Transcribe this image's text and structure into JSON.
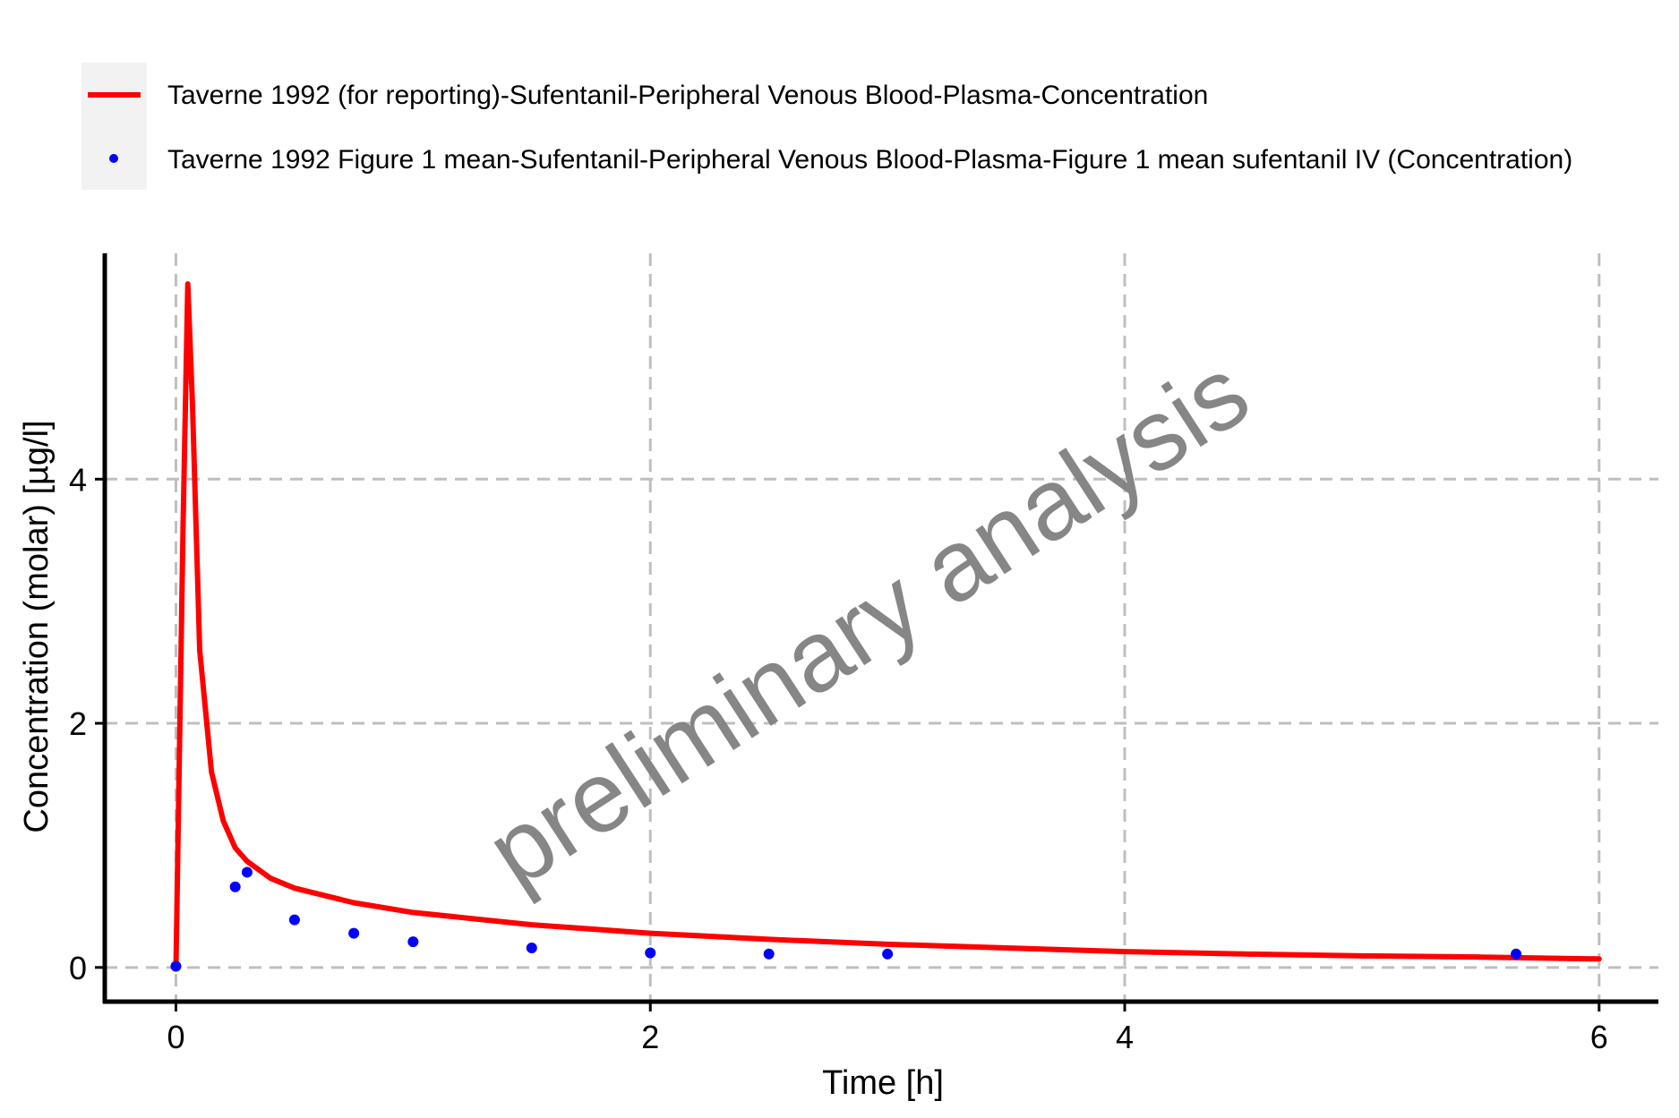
{
  "chart_data": {
    "type": "line",
    "title": "",
    "xlabel": "Time [h]",
    "ylabel": "Concentration (molar) [µg/l]",
    "xlim": [
      -0.3,
      6.25
    ],
    "ylim": [
      -0.28,
      5.85
    ],
    "x_ticks": [
      0,
      2,
      4,
      6
    ],
    "y_ticks": [
      0,
      2,
      4
    ],
    "grid": true,
    "legend_position": "top-left",
    "watermark": "preliminary analysis",
    "series": [
      {
        "name": "Taverne 1992 (for reporting)-Sufentanil-Peripheral Venous Blood-Plasma-Concentration",
        "kind": "line",
        "color": "#ff0000",
        "x": [
          0,
          0.03,
          0.05,
          0.07,
          0.1,
          0.15,
          0.2,
          0.25,
          0.3,
          0.4,
          0.5,
          0.75,
          1.0,
          1.5,
          2.0,
          2.5,
          3.0,
          3.5,
          4.0,
          4.5,
          5.0,
          5.5,
          6.0
        ],
        "y": [
          0,
          3.6,
          5.6,
          4.6,
          2.6,
          1.6,
          1.2,
          0.98,
          0.87,
          0.73,
          0.65,
          0.53,
          0.45,
          0.35,
          0.28,
          0.23,
          0.19,
          0.16,
          0.13,
          0.11,
          0.095,
          0.085,
          0.07
        ]
      },
      {
        "name": "Taverne 1992 Figure 1 mean-Sufentanil-Peripheral Venous Blood-Plasma-Figure 1 mean sufentanil IV (Concentration)",
        "kind": "scatter",
        "color": "#0000ff",
        "x": [
          0,
          0.25,
          0.3,
          0.5,
          0.75,
          1.0,
          1.5,
          2.0,
          2.5,
          3.0,
          5.65
        ],
        "y": [
          0.01,
          0.66,
          0.78,
          0.39,
          0.28,
          0.21,
          0.16,
          0.12,
          0.11,
          0.11,
          0.11
        ]
      }
    ]
  }
}
